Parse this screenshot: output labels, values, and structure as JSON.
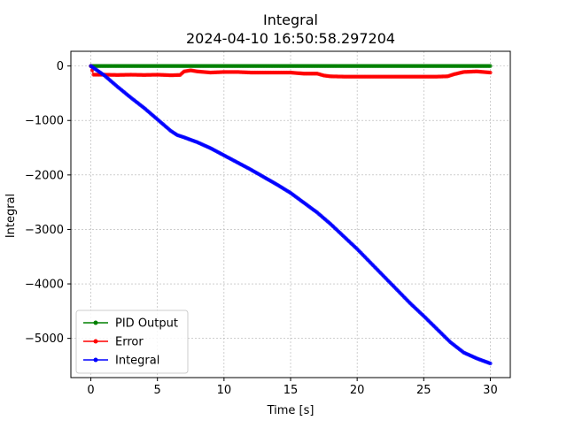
{
  "chart_data": {
    "type": "line",
    "title": "Integral",
    "subtitle": "2024-04-10 16:50:58.297204",
    "xlabel": "Time [s]",
    "ylabel": "Integral",
    "xlim": [
      -1.5,
      31.5
    ],
    "ylim": [
      -5720,
      270
    ],
    "xticks": [
      0,
      5,
      10,
      15,
      20,
      25,
      30
    ],
    "yticks": [
      0,
      -1000,
      -2000,
      -3000,
      -4000,
      -5000
    ],
    "xtick_labels": [
      "0",
      "5",
      "10",
      "15",
      "20",
      "25",
      "30"
    ],
    "ytick_labels": [
      "0",
      "−1000",
      "−2000",
      "−3000",
      "−4000",
      "−5000"
    ],
    "grid": true,
    "legend_position": "lower-left",
    "series": [
      {
        "name": "PID Output",
        "color": "#008000",
        "x": [
          0,
          2,
          4,
          6,
          8,
          10,
          12,
          14,
          16,
          18,
          20,
          22,
          24,
          26,
          28,
          30
        ],
        "y": [
          0,
          0,
          0,
          0,
          0,
          0,
          0,
          0,
          0,
          0,
          0,
          0,
          0,
          0,
          0,
          0
        ]
      },
      {
        "name": "Error",
        "color": "#ff0000",
        "x": [
          0,
          0.2,
          1,
          2,
          3,
          4,
          5,
          6,
          6.7,
          7,
          7.5,
          8,
          9,
          10,
          11,
          12,
          13,
          14,
          15,
          16,
          17,
          17.5,
          18,
          19,
          20,
          21,
          22,
          23,
          24,
          25,
          26,
          26.8,
          27.3,
          28,
          29,
          29.5,
          30
        ],
        "y": [
          0,
          -160,
          -160,
          -165,
          -160,
          -165,
          -160,
          -170,
          -165,
          -100,
          -80,
          -100,
          -120,
          -110,
          -110,
          -120,
          -120,
          -120,
          -120,
          -140,
          -140,
          -175,
          -190,
          -195,
          -195,
          -195,
          -195,
          -195,
          -195,
          -195,
          -195,
          -190,
          -150,
          -110,
          -100,
          -110,
          -120
        ]
      },
      {
        "name": "Integral",
        "color": "#0000ff",
        "x": [
          0,
          1,
          2,
          3,
          4,
          5,
          6,
          6.5,
          7,
          8,
          9,
          10,
          11,
          12,
          13,
          14,
          15,
          16,
          17,
          18,
          19,
          20,
          21,
          22,
          23,
          24,
          25,
          26,
          27,
          28,
          29,
          30
        ],
        "y": [
          0,
          -170,
          -380,
          -580,
          -770,
          -980,
          -1190,
          -1270,
          -1310,
          -1400,
          -1510,
          -1640,
          -1770,
          -1900,
          -2040,
          -2180,
          -2330,
          -2510,
          -2690,
          -2900,
          -3130,
          -3360,
          -3610,
          -3860,
          -4110,
          -4360,
          -4590,
          -4830,
          -5070,
          -5260,
          -5370,
          -5460
        ]
      }
    ]
  }
}
